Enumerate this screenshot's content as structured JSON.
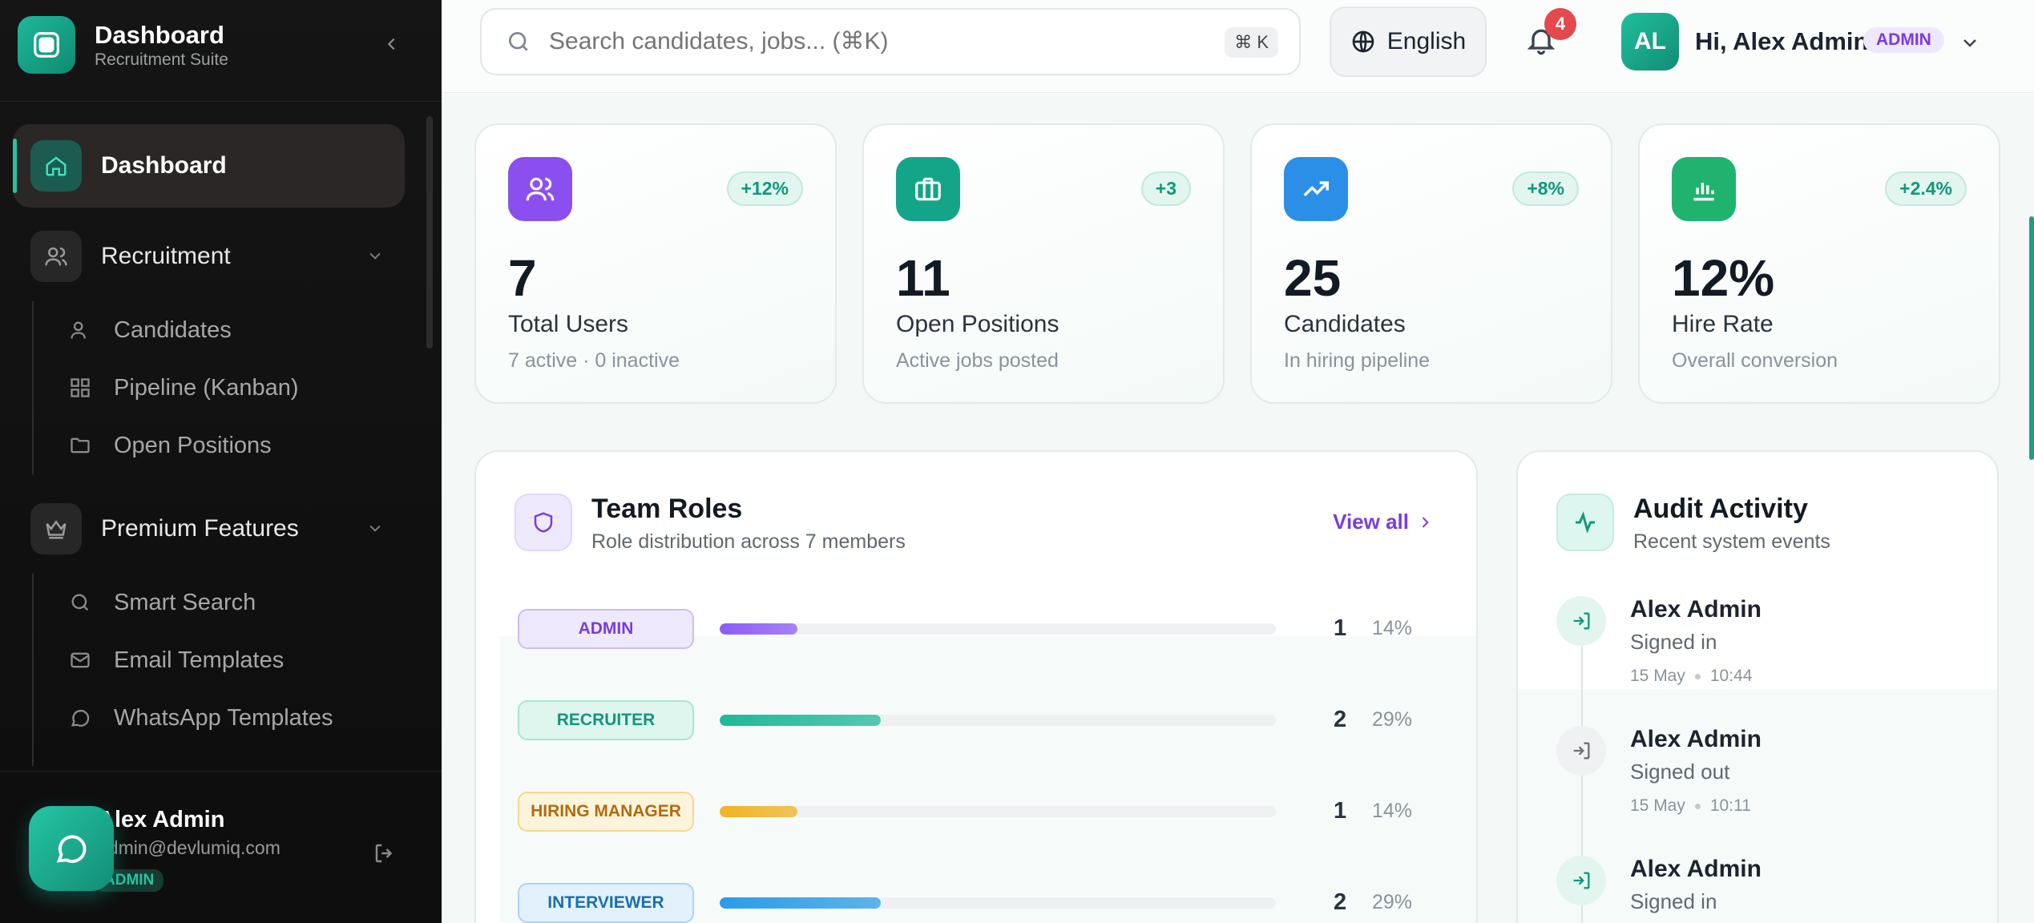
{
  "brand": {
    "title": "Dashboard",
    "subtitle": "Recruitment Suite"
  },
  "sidebar": {
    "items": [
      {
        "label": "Dashboard",
        "icon": "home-icon",
        "active": true
      },
      {
        "label": "Recruitment",
        "icon": "users-icon",
        "expanded": true,
        "children": [
          {
            "label": "Candidates",
            "icon": "user-icon"
          },
          {
            "label": "Pipeline (Kanban)",
            "icon": "grid-icon"
          },
          {
            "label": "Open Positions",
            "icon": "folder-icon"
          }
        ]
      },
      {
        "label": "Premium Features",
        "icon": "crown-icon",
        "expanded": true,
        "children": [
          {
            "label": "Smart Search",
            "icon": "search-icon"
          },
          {
            "label": "Email Templates",
            "icon": "mail-icon"
          },
          {
            "label": "WhatsApp Templates",
            "icon": "chat-icon"
          }
        ]
      }
    ],
    "footer": {
      "name": "Alex Admin",
      "email": "admin@devlumiq.com",
      "role": "ADMIN"
    }
  },
  "header": {
    "search_placeholder": "Search candidates, jobs... (⌘K)",
    "search_shortcut": "⌘ K",
    "language": "English",
    "notifications": "4",
    "avatar_initials": "AL",
    "greeting": "Hi, Alex Admin",
    "role_badge": "ADMIN"
  },
  "stats": [
    {
      "value": "7",
      "label": "Total Users",
      "sub": "7 active · 0 inactive",
      "delta": "+12%",
      "icon": "users-icon",
      "color": "#8b4ff0"
    },
    {
      "value": "11",
      "label": "Open Positions",
      "sub": "Active jobs posted",
      "delta": "+3",
      "icon": "briefcase-icon",
      "color": "#14a588"
    },
    {
      "value": "25",
      "label": "Candidates",
      "sub": "In hiring pipeline",
      "delta": "+8%",
      "icon": "trending-up-icon",
      "color": "#2b8fe8"
    },
    {
      "value": "12%",
      "label": "Hire Rate",
      "sub": "Overall conversion",
      "delta": "+2.4%",
      "icon": "bar-chart-icon",
      "color": "#1fb36f"
    }
  ],
  "team_roles": {
    "title": "Team Roles",
    "subtitle": "Role distribution across 7 members",
    "view_all": "View all",
    "roles": [
      {
        "name": "ADMIN",
        "count": "1",
        "pct": "14%",
        "fraction": 0.14,
        "color": "#8b5cf6",
        "text": "#7a3ce0",
        "bg": "#efe9fd",
        "border": "#cdbcf7"
      },
      {
        "name": "RECRUITER",
        "count": "2",
        "pct": "29%",
        "fraction": 0.29,
        "color": "#1fb89a",
        "text": "#12977d",
        "bg": "#def6ee",
        "border": "#a6e6d3"
      },
      {
        "name": "HIRING MANAGER",
        "count": "1",
        "pct": "14%",
        "fraction": 0.14,
        "color": "#f2b322",
        "text": "#b56a0a",
        "bg": "#fdf4dc",
        "border": "#f3d98e"
      },
      {
        "name": "INTERVIEWER",
        "count": "2",
        "pct": "29%",
        "fraction": 0.29,
        "color": "#2b9ce8",
        "text": "#1b6fae",
        "bg": "#e2f1fc",
        "border": "#a9d4f4"
      }
    ]
  },
  "audit": {
    "title": "Audit Activity",
    "subtitle": "Recent system events",
    "events": [
      {
        "name": "Alex Admin",
        "action": "Signed in",
        "date": "15 May",
        "time": "10:44",
        "type": "in"
      },
      {
        "name": "Alex Admin",
        "action": "Signed out",
        "date": "15 May",
        "time": "10:11",
        "type": "out"
      },
      {
        "name": "Alex Admin",
        "action": "Signed in",
        "date": "",
        "time": "",
        "type": "in"
      }
    ]
  }
}
